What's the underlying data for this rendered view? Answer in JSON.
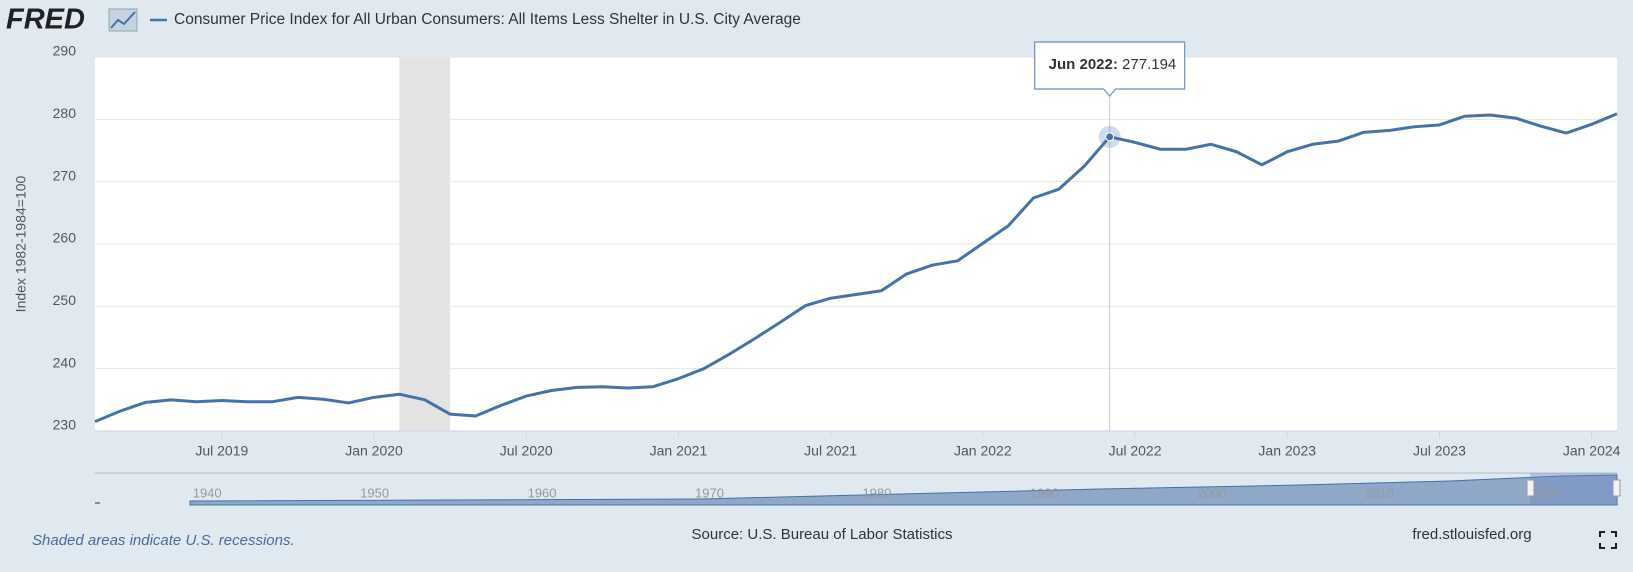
{
  "chart_data": {
    "type": "line",
    "brand": "FRED",
    "title": "Consumer Price Index for All Urban Consumers: All Items Less Shelter in U.S. City Average",
    "ylabel": "Index 1982-1984=100",
    "note": "Shaded areas indicate U.S. recessions.",
    "source": "Source: U.S. Bureau of Labor Statistics",
    "site": "fred.stlouisfed.org",
    "x": [
      "2019-02",
      "2019-03",
      "2019-04",
      "2019-05",
      "2019-06",
      "2019-07",
      "2019-08",
      "2019-09",
      "2019-10",
      "2019-11",
      "2019-12",
      "2020-01",
      "2020-02",
      "2020-03",
      "2020-04",
      "2020-05",
      "2020-06",
      "2020-07",
      "2020-08",
      "2020-09",
      "2020-10",
      "2020-11",
      "2020-12",
      "2021-01",
      "2021-02",
      "2021-03",
      "2021-04",
      "2021-05",
      "2021-06",
      "2021-07",
      "2021-08",
      "2021-09",
      "2021-10",
      "2021-11",
      "2021-12",
      "2022-01",
      "2022-02",
      "2022-03",
      "2022-04",
      "2022-05",
      "2022-06",
      "2022-07",
      "2022-08",
      "2022-09",
      "2022-10",
      "2022-11",
      "2022-12",
      "2023-01",
      "2023-02",
      "2023-03",
      "2023-04",
      "2023-05",
      "2023-06",
      "2023-07",
      "2023-08",
      "2023-09",
      "2023-10",
      "2023-11",
      "2023-12",
      "2024-01",
      "2024-02"
    ],
    "series": [
      {
        "name": "Consumer Price Index for All Urban Consumers: All Items Less Shelter in U.S. City Average",
        "color": "#4572a7",
        "values": [
          231.5,
          233.2,
          234.6,
          235.0,
          234.7,
          234.9,
          234.7,
          234.7,
          235.4,
          235.1,
          234.5,
          235.4,
          235.9,
          235.0,
          232.7,
          232.4,
          234.1,
          235.6,
          236.5,
          237.0,
          237.1,
          236.9,
          237.1,
          238.4,
          240.0,
          242.3,
          244.8,
          247.4,
          250.1,
          251.3,
          251.9,
          252.5,
          255.2,
          256.6,
          257.3,
          260.1,
          262.9,
          267.4,
          268.8,
          272.5,
          277.194,
          276.3,
          275.2,
          275.2,
          276.0,
          274.8,
          272.7,
          274.8,
          276.0,
          276.5,
          277.9,
          278.2,
          278.8,
          279.1,
          280.5,
          280.7,
          280.2,
          278.9,
          277.8,
          279.2,
          280.9
        ]
      }
    ],
    "xlim": [
      "2019-02",
      "2024-02"
    ],
    "xticks": [
      {
        "value": "2019-07",
        "label": "Jul 2019"
      },
      {
        "value": "2020-01",
        "label": "Jan 2020"
      },
      {
        "value": "2020-07",
        "label": "Jul 2020"
      },
      {
        "value": "2021-01",
        "label": "Jan 2021"
      },
      {
        "value": "2021-07",
        "label": "Jul 2021"
      },
      {
        "value": "2022-01",
        "label": "Jan 2022"
      },
      {
        "value": "2022-07",
        "label": "Jul 2022"
      },
      {
        "value": "2023-01",
        "label": "Jan 2023"
      },
      {
        "value": "2023-07",
        "label": "Jul 2023"
      },
      {
        "value": "2024-01",
        "label": "Jan 2024"
      }
    ],
    "ylim": [
      230,
      290
    ],
    "yticks": [
      230,
      240,
      250,
      260,
      270,
      280,
      290
    ],
    "grid": true,
    "recessions": [
      [
        "2020-02",
        "2020-04"
      ]
    ],
    "tooltip": {
      "x": "2022-06",
      "label": "Jun 2022"
    },
    "navigator": {
      "xlim": [
        1933.3,
        2024.2
      ],
      "xticks": [
        1940,
        1950,
        1960,
        1970,
        1980,
        1990,
        2000,
        2010,
        2020
      ]
    }
  }
}
